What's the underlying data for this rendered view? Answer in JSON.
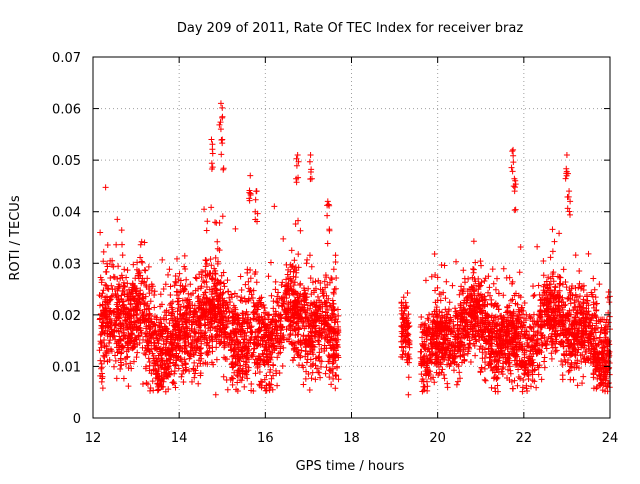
{
  "chart_data": {
    "type": "scatter",
    "title": "Day 209 of 2011, Rate Of TEC Index for receiver braz",
    "xlabel": "GPS time / hours",
    "ylabel": "ROTI / TECUs",
    "xlim": [
      12,
      24
    ],
    "ylim": [
      0,
      0.07
    ],
    "xticks": [
      "12",
      "14",
      "16",
      "18",
      "20",
      "22",
      "24"
    ],
    "yticks": [
      "0",
      "0.01",
      "0.02",
      "0.03",
      "0.04",
      "0.05",
      "0.06",
      "0.07"
    ],
    "grid": true,
    "marker": "+",
    "color": "#ff0000",
    "series": [
      {
        "name": "ROTI",
        "segments": [
          {
            "x_start": 12.15,
            "x_end": 17.7,
            "base": 0.017,
            "spread": 0.012,
            "count": 2600
          },
          {
            "x_start": 19.15,
            "x_end": 19.35,
            "base": 0.015,
            "spread": 0.009,
            "count": 90
          },
          {
            "x_start": 19.6,
            "x_end": 24.0,
            "base": 0.016,
            "spread": 0.01,
            "count": 2100
          }
        ],
        "peaks": [
          {
            "x": 14.97,
            "y": 0.061
          },
          {
            "x": 14.75,
            "y": 0.054
          },
          {
            "x": 15.0,
            "y": 0.054
          },
          {
            "x": 16.75,
            "y": 0.051
          },
          {
            "x": 17.05,
            "y": 0.051
          },
          {
            "x": 21.75,
            "y": 0.052
          },
          {
            "x": 23.0,
            "y": 0.051
          },
          {
            "x": 15.65,
            "y": 0.047
          },
          {
            "x": 21.8,
            "y": 0.046
          },
          {
            "x": 23.05,
            "y": 0.044
          },
          {
            "x": 12.2,
            "y": 0.0105
          },
          {
            "x": 15.8,
            "y": 0.044
          },
          {
            "x": 17.45,
            "y": 0.042
          }
        ],
        "low_points": [
          {
            "x": 14.85,
            "y": 0.0045
          },
          {
            "x": 19.32,
            "y": 0.0045
          },
          {
            "x": 23.7,
            "y": 0.006
          }
        ]
      }
    ]
  }
}
